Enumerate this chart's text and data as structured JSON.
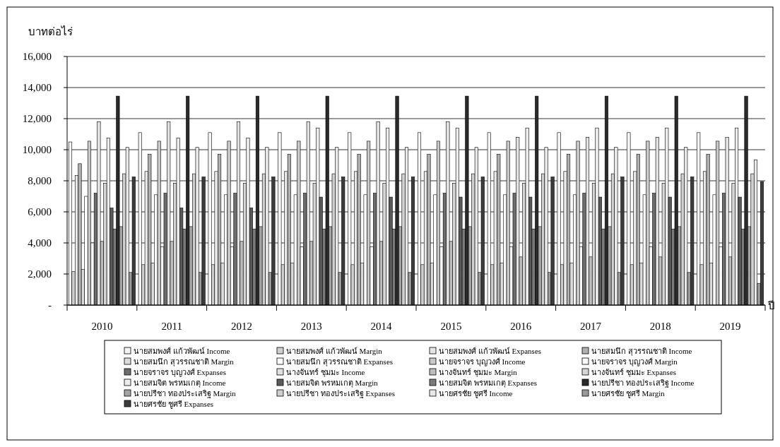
{
  "chart_data": {
    "type": "bar",
    "ylabel": "บาทต่อไร่",
    "xlabel": "ปี",
    "categories": [
      "2010",
      "2011",
      "2012",
      "2013",
      "2014",
      "2015",
      "2016",
      "2017",
      "2018",
      "2019"
    ],
    "ylim": [
      0,
      16000
    ],
    "yticks": [
      {
        "value": 0,
        "label": "-"
      },
      {
        "value": 2000,
        "label": "2,000"
      },
      {
        "value": 4000,
        "label": "4,000"
      },
      {
        "value": 6000,
        "label": "6,000"
      },
      {
        "value": 8000,
        "label": "8,000"
      },
      {
        "value": 10000,
        "label": "10,000"
      },
      {
        "value": 12000,
        "label": "12,000"
      },
      {
        "value": 14000,
        "label": "14,000"
      },
      {
        "value": 16000,
        "label": "16,000"
      }
    ],
    "grid": "y",
    "legend": "bottom",
    "series": [
      {
        "name": "นายสมพงศ์ แก้วพัฒน์ Income",
        "color": "#f4f4f4",
        "values": [
          10500,
          11100,
          11100,
          11100,
          11100,
          11100,
          11100,
          11100,
          11100,
          11100
        ]
      },
      {
        "name": "นายสมพงศ์ แก้วพัฒน์ Margin",
        "color": "#cfcfcf",
        "values": [
          2150,
          2600,
          2600,
          2600,
          2600,
          2600,
          2600,
          2600,
          2600,
          2600
        ]
      },
      {
        "name": "นายสมพงศ์ แก้วพัฒน์ Expanses",
        "color": "#e6e6e6",
        "values": [
          8350,
          8600,
          8600,
          8600,
          8600,
          8600,
          8600,
          8600,
          8600,
          8600
        ]
      },
      {
        "name": "นายสมนึก สุวรรณชาติ Income",
        "color": "#b0b0b0",
        "values": [
          9100,
          9700,
          9700,
          9700,
          9700,
          9700,
          9700,
          9700,
          9700,
          9700
        ]
      },
      {
        "name": "นายสมนึก สุวรรณชาติ Margin",
        "color": "#dcdcdc",
        "values": [
          2300,
          2700,
          2700,
          2700,
          2700,
          2700,
          2700,
          2700,
          2700,
          2700
        ]
      },
      {
        "name": "นายสมนึก สุวรรณชาติ Expanses",
        "color": "#ffffff",
        "values": [
          7000,
          7100,
          7100,
          7100,
          7100,
          7100,
          7100,
          7100,
          7100,
          7100
        ]
      },
      {
        "name": "นายจราจร บุญวงศ์ Income",
        "color": "#c8c8c8",
        "values": [
          10550,
          10550,
          10550,
          10550,
          10550,
          10550,
          10550,
          10550,
          10550,
          10550
        ]
      },
      {
        "name": "นายจราจร บุญวงศ์ Margin",
        "color": "#fafafa",
        "values": [
          4000,
          3750,
          3750,
          3750,
          3750,
          3750,
          3750,
          3750,
          3750,
          3750
        ]
      },
      {
        "name": "นายจราจร บุญวงศ์ Expanses",
        "color": "#6e6e6e",
        "values": [
          7200,
          7200,
          7200,
          7200,
          7200,
          7200,
          7200,
          7200,
          7200,
          7200
        ]
      },
      {
        "name": "นางจันทร์ ชุมมะ Income",
        "color": "#e2e2e2",
        "values": [
          11800,
          11800,
          11800,
          11800,
          11800,
          11800,
          10800,
          10800,
          10800,
          10800
        ]
      },
      {
        "name": "นางจันทร์ ชุมมะ Margin",
        "color": "#bdbdbd",
        "values": [
          4100,
          4100,
          4100,
          4100,
          4100,
          4100,
          3100,
          3100,
          3100,
          3100
        ]
      },
      {
        "name": "นางจันทร์ ชุมมะ Expanses",
        "color": "#d6d6d6",
        "values": [
          7850,
          7850,
          7850,
          7850,
          7850,
          7850,
          7850,
          7850,
          7850,
          7850
        ]
      },
      {
        "name": "นายสมจิต พรหมเกตุ Income",
        "color": "#ececec",
        "values": [
          10750,
          10750,
          10750,
          11400,
          11400,
          11400,
          11400,
          11400,
          11400,
          11400
        ]
      },
      {
        "name": "นายสมจิต พรหมเกตุ Margin",
        "color": "#5a5a5a",
        "values": [
          6250,
          6250,
          6250,
          6950,
          6950,
          6950,
          6950,
          6950,
          6950,
          6950
        ]
      },
      {
        "name": "นายสมจิต พรหมเกตุ Expanses",
        "color": "#7a7a7a",
        "values": [
          4900,
          4900,
          4900,
          4900,
          4900,
          4900,
          4900,
          4900,
          4900,
          4900
        ]
      },
      {
        "name": "นายปรีชา ทองประเสริฐ Income",
        "color": "#2a2a2a",
        "values": [
          13450,
          13450,
          13450,
          13450,
          13450,
          13450,
          13450,
          13450,
          13450,
          13450
        ]
      },
      {
        "name": "นายปรีชา ทองประเสริฐ Margin",
        "color": "#a4a4a4",
        "values": [
          5050,
          5050,
          5050,
          5050,
          5050,
          5050,
          5050,
          5050,
          5050,
          5050
        ]
      },
      {
        "name": "นายปรีชา ทองประเสริฐ Expanses",
        "color": "#d0d0d0",
        "values": [
          8450,
          8450,
          8450,
          8450,
          8450,
          8450,
          8450,
          8450,
          8450,
          8450
        ]
      },
      {
        "name": "นายศรชัย ชูศรี Income",
        "color": "#e8e8e8",
        "values": [
          10150,
          10150,
          10150,
          10150,
          10150,
          10150,
          10150,
          10150,
          10150,
          9350
        ]
      },
      {
        "name": "นายศรชัย ชูศรี Margin",
        "color": "#9a9a9a",
        "values": [
          2100,
          2100,
          2100,
          2100,
          2100,
          2100,
          2100,
          2100,
          2100,
          1400
        ]
      },
      {
        "name": "นายศรชัย ชูศรี Expanses",
        "color": "#3c3c3c",
        "values": [
          8250,
          8250,
          8250,
          8250,
          8250,
          8250,
          8250,
          8250,
          8250,
          7950
        ]
      }
    ]
  }
}
